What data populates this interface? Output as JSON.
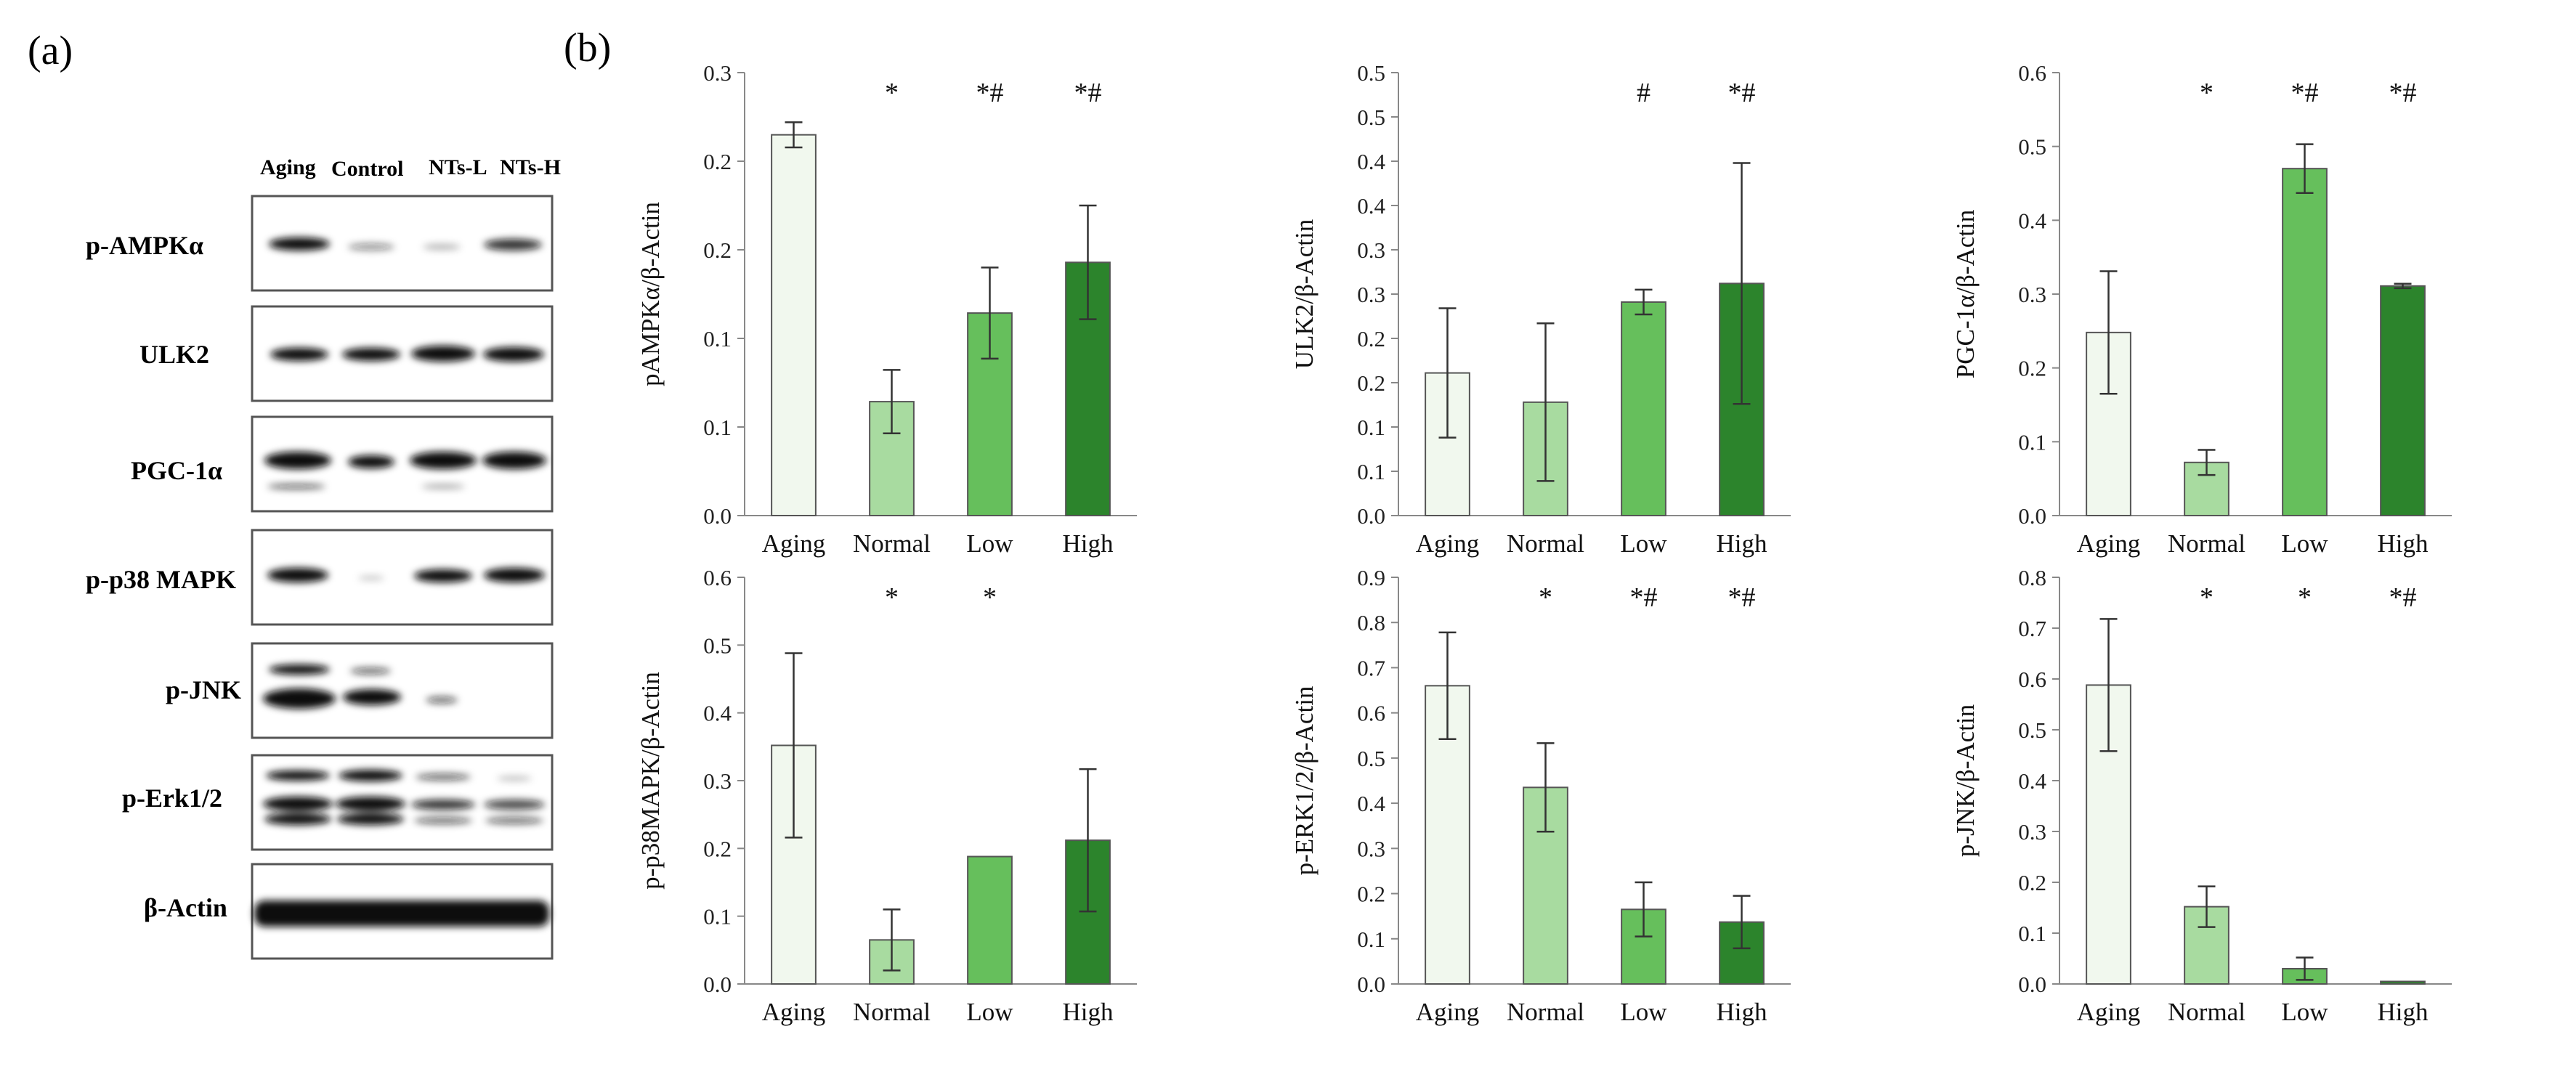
{
  "panels": {
    "a": "(a)",
    "b": "(b)"
  },
  "blot": {
    "lanes": [
      "Aging",
      "Control",
      "NTs-L",
      "NTs-H"
    ],
    "proteins": [
      "p-AMPKα",
      "ULK2",
      "PGC-1α",
      "p-p38 MAPK",
      "p-JNK",
      "p-Erk1/2",
      "β-Actin"
    ]
  },
  "colors": {
    "aging": "#f1f8ee",
    "normal": "#a8dba0",
    "low": "#66bf5c",
    "high": "#2c842c",
    "bar_edge": "#555555",
    "axis": "#888888",
    "error_bar": "#333333"
  },
  "chart_data": [
    {
      "id": "pampk",
      "type": "bar",
      "ylabel": "pAMPKα/β-Actin",
      "categories": [
        "Aging",
        "Normal",
        "Low",
        "High"
      ],
      "values": [
        0.2149,
        0.0643,
        0.1143,
        0.1429
      ],
      "errors": [
        0.0071,
        0.0179,
        0.0257,
        0.0321
      ],
      "significance": [
        "",
        "*",
        "*#",
        "*#"
      ],
      "ylim": [
        0,
        0.25
      ],
      "yticks": [
        "0.0",
        "0.1",
        "0.1",
        "0.2",
        "0.2",
        "0.3"
      ]
    },
    {
      "id": "ulk2",
      "type": "bar",
      "ylabel": "ULK2/β-Actin",
      "categories": [
        "Aging",
        "Normal",
        "Low",
        "High"
      ],
      "values": [
        0.161,
        0.128,
        0.241,
        0.262
      ],
      "errors": [
        0.073,
        0.089,
        0.014,
        0.136
      ],
      "significance": [
        "",
        "",
        "#",
        "*#"
      ],
      "ylim": [
        0,
        0.5
      ],
      "yticks": [
        "0.0",
        "0.1",
        "0.1",
        "0.2",
        "0.2",
        "0.3",
        "0.3",
        "0.4",
        "0.4",
        "0.5",
        "0.5"
      ]
    },
    {
      "id": "pgc1a",
      "type": "bar",
      "ylabel": "PGC-1α/β-Actin",
      "categories": [
        "Aging",
        "Normal",
        "Low",
        "High"
      ],
      "values": [
        0.248,
        0.072,
        0.47,
        0.311
      ],
      "errors": [
        0.083,
        0.017,
        0.033,
        0.003
      ],
      "significance": [
        "",
        "*",
        "*#",
        "*#"
      ],
      "ylim": [
        0,
        0.6
      ],
      "yticks": [
        "0.0",
        "0.1",
        "0.2",
        "0.3",
        "0.4",
        "0.5",
        "0.6"
      ]
    },
    {
      "id": "pp38",
      "type": "bar",
      "ylabel": "p-p38MAPK/β-Actin",
      "categories": [
        "Aging",
        "Normal",
        "Low",
        "High"
      ],
      "values": [
        0.352,
        0.065,
        0.188,
        0.212
      ],
      "errors": [
        0.136,
        0.045,
        0.0,
        0.105
      ],
      "significance": [
        "",
        "*",
        "*",
        ""
      ],
      "ylim": [
        0,
        0.6
      ],
      "yticks": [
        "0.0",
        "0.1",
        "0.2",
        "0.3",
        "0.4",
        "0.5",
        "0.6"
      ]
    },
    {
      "id": "perk",
      "type": "bar",
      "ylabel": "p-ERK1/2/β-Actin",
      "categories": [
        "Aging",
        "Normal",
        "Low",
        "High"
      ],
      "values": [
        0.66,
        0.435,
        0.165,
        0.137
      ],
      "errors": [
        0.118,
        0.098,
        0.06,
        0.058
      ],
      "significance": [
        "",
        "*",
        "*#",
        "*#"
      ],
      "ylim": [
        0,
        0.9
      ],
      "yticks": [
        "0.0",
        "0.1",
        "0.2",
        "0.3",
        "0.4",
        "0.5",
        "0.6",
        "0.7",
        "0.8",
        "0.9"
      ]
    },
    {
      "id": "pjnk",
      "type": "bar",
      "ylabel": "p-JNK/β-Actin",
      "categories": [
        "Aging",
        "Normal",
        "Low",
        "High"
      ],
      "values": [
        0.588,
        0.152,
        0.03,
        0.005
      ],
      "errors": [
        0.13,
        0.04,
        0.022,
        0.0
      ],
      "significance": [
        "",
        "*",
        "*",
        "*#"
      ],
      "ylim": [
        0,
        0.8
      ],
      "yticks": [
        "0.0",
        "0.1",
        "0.2",
        "0.3",
        "0.4",
        "0.5",
        "0.6",
        "0.7",
        "0.8"
      ]
    }
  ]
}
